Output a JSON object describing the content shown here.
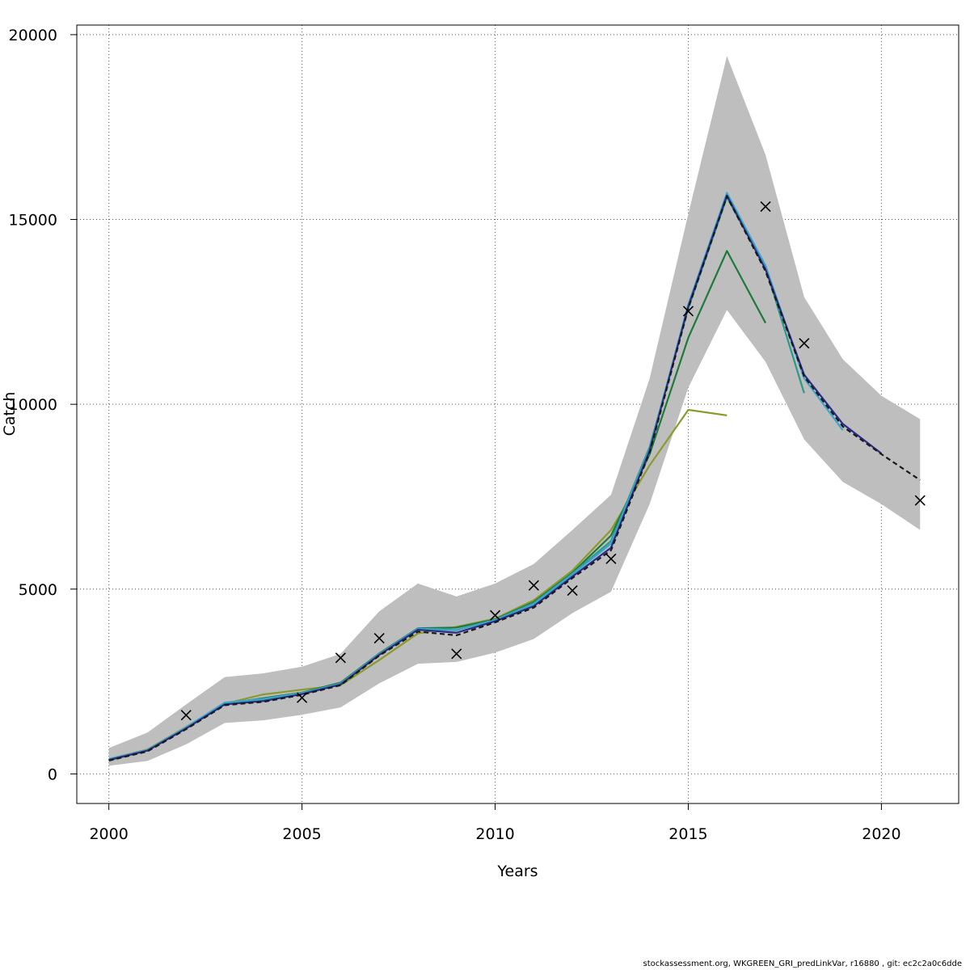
{
  "chart_data": {
    "type": "line",
    "xlabel": "Years",
    "ylabel": "Catch",
    "xlim": [
      1999.17,
      2022.0
    ],
    "ylim": [
      -800,
      20260
    ],
    "x_ticks": [
      2000,
      2005,
      2010,
      2015,
      2020
    ],
    "y_ticks": [
      0,
      5000,
      10000,
      15000,
      20000
    ],
    "grid": true,
    "colors": {
      "band": "#bebebe",
      "grid": "#555555",
      "observed": "#000000"
    },
    "confidence_band": {
      "x": [
        2000,
        2001,
        2002,
        2003,
        2004,
        2005,
        2006,
        2007,
        2008,
        2009,
        2010,
        2011,
        2012,
        2013,
        2014,
        2015,
        2016,
        2017,
        2018,
        2019,
        2020,
        2021
      ],
      "lower": [
        220,
        350,
        800,
        1380,
        1450,
        1600,
        1800,
        2450,
        2980,
        3030,
        3280,
        3650,
        4350,
        4930,
        7300,
        10450,
        12550,
        11150,
        9050,
        7900,
        7300,
        6600
      ],
      "upper": [
        700,
        1120,
        1880,
        2620,
        2720,
        2900,
        3250,
        4400,
        5150,
        4800,
        5150,
        5680,
        6600,
        7550,
        10700,
        15150,
        19420,
        16750,
        12900,
        11220,
        10230,
        9600
      ]
    },
    "series": [
      {
        "color": "#1a1a1a",
        "dashed": true,
        "x": [
          2000,
          2001,
          2002,
          2003,
          2004,
          2005,
          2006,
          2007,
          2008,
          2009,
          2010,
          2011,
          2012,
          2013,
          2014,
          2015,
          2016,
          2017,
          2018,
          2019,
          2020,
          2021
        ],
        "y": [
          360,
          610,
          1210,
          1860,
          1950,
          2140,
          2400,
          3200,
          3850,
          3750,
          4100,
          4500,
          5300,
          6050,
          8700,
          12600,
          15630,
          13600,
          10750,
          9400,
          8650,
          7950
        ]
      },
      {
        "color": "#2b2b8c",
        "x": [
          2000,
          2001,
          2002,
          2003,
          2004,
          2005,
          2006,
          2007,
          2008,
          2009,
          2010,
          2011,
          2012,
          2013,
          2014,
          2015,
          2016,
          2017,
          2018,
          2019,
          2020
        ],
        "y": [
          380,
          630,
          1230,
          1880,
          1970,
          2160,
          2420,
          3220,
          3900,
          3820,
          4130,
          4540,
          5340,
          6120,
          8750,
          12650,
          15650,
          13650,
          10800,
          9470,
          8670
        ]
      },
      {
        "color": "#3aa6c9",
        "x": [
          2000,
          2001,
          2002,
          2003,
          2004,
          2005,
          2006,
          2007,
          2008,
          2009,
          2010,
          2011,
          2012,
          2013,
          2014,
          2015,
          2016,
          2017,
          2018,
          2019
        ],
        "y": [
          400,
          650,
          1260,
          1930,
          2030,
          2190,
          2440,
          3240,
          3930,
          3900,
          4160,
          4600,
          5400,
          6230,
          8800,
          12700,
          15720,
          13750,
          10700,
          9300
        ]
      },
      {
        "color": "#2a9a8a",
        "x": [
          2000,
          2001,
          2002,
          2003,
          2004,
          2005,
          2006,
          2007,
          2008,
          2009,
          2010,
          2011,
          2012,
          2013,
          2014,
          2015,
          2016,
          2017,
          2018
        ],
        "y": [
          380,
          640,
          1250,
          1920,
          2010,
          2180,
          2450,
          3250,
          3920,
          3890,
          4170,
          4620,
          5420,
          6300,
          8850,
          12600,
          15600,
          13700,
          10300
        ]
      },
      {
        "color": "#1e7a3a",
        "x": [
          2000,
          2001,
          2002,
          2003,
          2004,
          2005,
          2006,
          2007,
          2008,
          2009,
          2010,
          2011,
          2012,
          2013,
          2014,
          2015,
          2016,
          2017
        ],
        "y": [
          370,
          630,
          1240,
          1900,
          2050,
          2200,
          2470,
          3260,
          3940,
          3960,
          4180,
          4650,
          5440,
          6450,
          8650,
          11800,
          14150,
          12200
        ]
      },
      {
        "color": "#8c9a2c",
        "x": [
          2000,
          2001,
          2002,
          2003,
          2004,
          2005,
          2006,
          2007,
          2008,
          2009,
          2010,
          2011,
          2012,
          2013,
          2014,
          2015,
          2016
        ],
        "y": [
          400,
          660,
          1270,
          1900,
          2150,
          2280,
          2400,
          3080,
          3800,
          3980,
          4200,
          4700,
          5500,
          6600,
          8350,
          9850,
          9700
        ]
      }
    ],
    "observed": {
      "x": [
        2002,
        2005,
        2006,
        2007,
        2009,
        2010,
        2011,
        2012,
        2013,
        2015,
        2017,
        2018,
        2021
      ],
      "y": [
        1590,
        2060,
        3140,
        3670,
        3250,
        4290,
        5100,
        4960,
        5820,
        12520,
        15350,
        11650,
        7400
      ]
    }
  },
  "footer": "stockassessment.org, WKGREEN_GRI_predLinkVar, r16880 , git: ec2c2a0c6dde"
}
